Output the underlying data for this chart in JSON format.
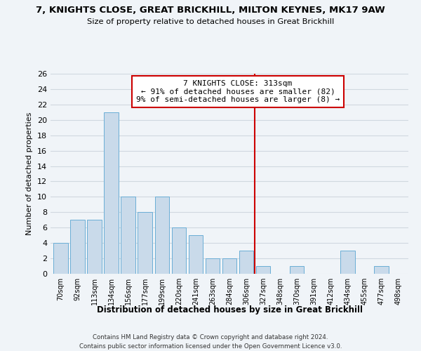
{
  "title1": "7, KNIGHTS CLOSE, GREAT BRICKHILL, MILTON KEYNES, MK17 9AW",
  "title2": "Size of property relative to detached houses in Great Brickhill",
  "xlabel": "Distribution of detached houses by size in Great Brickhill",
  "ylabel": "Number of detached properties",
  "bin_labels": [
    "70sqm",
    "92sqm",
    "113sqm",
    "134sqm",
    "156sqm",
    "177sqm",
    "199sqm",
    "220sqm",
    "241sqm",
    "263sqm",
    "284sqm",
    "306sqm",
    "327sqm",
    "348sqm",
    "370sqm",
    "391sqm",
    "412sqm",
    "434sqm",
    "455sqm",
    "477sqm",
    "498sqm"
  ],
  "bar_values": [
    4,
    7,
    7,
    21,
    10,
    8,
    10,
    6,
    5,
    2,
    2,
    3,
    1,
    0,
    1,
    0,
    0,
    3,
    0,
    1,
    0
  ],
  "bar_color": "#c9daea",
  "bar_edge_color": "#6aaed6",
  "vline_color": "#cc0000",
  "annotation_title": "7 KNIGHTS CLOSE: 313sqm",
  "annotation_line1": "← 91% of detached houses are smaller (82)",
  "annotation_line2": "9% of semi-detached houses are larger (8) →",
  "annotation_box_color": "#ffffff",
  "annotation_box_edge": "#cc0000",
  "ylim": [
    0,
    26
  ],
  "yticks": [
    0,
    2,
    4,
    6,
    8,
    10,
    12,
    14,
    16,
    18,
    20,
    22,
    24,
    26
  ],
  "footnote1": "Contains HM Land Registry data © Crown copyright and database right 2024.",
  "footnote2": "Contains public sector information licensed under the Open Government Licence v3.0.",
  "bg_color": "#f0f4f8"
}
